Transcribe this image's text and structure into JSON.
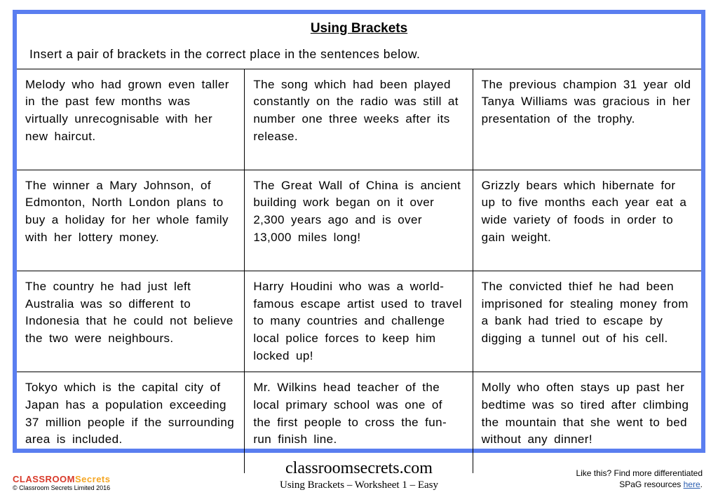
{
  "worksheet": {
    "title": "Using Brackets",
    "instructions": "Insert a pair of brackets in the correct place in the sentences below.",
    "cells": [
      "Melody who had grown even taller in the past few months was virtually unrecognisable with her new haircut.",
      "The song which had been played constantly on the radio was still at number one three weeks after its release.",
      "The previous champion 31 year old Tanya Williams was gracious in her presentation of the trophy.",
      "The winner a Mary Johnson, of Edmonton, North London plans to buy a holiday for her whole family with her lottery money.",
      "The Great Wall of China is ancient building work began on it over 2,300 years ago and is over 13,000 miles long!",
      "Grizzly bears which hibernate for up to five months each year eat a wide variety of foods in order to gain weight.",
      "The country he had just left Australia was so different to Indonesia that he could not believe the two were neighbours.",
      "Harry Houdini who was a world-famous escape artist used to travel to many countries and challenge local police forces to keep him locked up!",
      "The convicted thief he had been imprisoned for stealing money from a bank had tried to escape by digging a tunnel out of his cell.",
      "Tokyo which is the capital city of Japan has a population exceeding 37 million people if the surrounding area is included.",
      "Mr. Wilkins head teacher of the local primary school was one of the first people to cross the fun-run finish line.",
      "Molly who often stays up past her bedtime was so tired after climbing the mountain that she went to bed without any dinner!"
    ]
  },
  "footer": {
    "site": "classroomsecrets.com",
    "subtitle": "Using Brackets – Worksheet 1 – Easy",
    "logo_word1": "CLASSROOM",
    "logo_word2": "Secrets",
    "copyright": "© Classroom Secrets Limited 2016",
    "right_line1": "Like this? Find more differentiated",
    "right_line2_prefix": "SPaG resources ",
    "right_link": "here",
    "right_line2_suffix": "."
  },
  "style": {
    "border_color": "#5a7ef0",
    "grid_border_color": "#000000",
    "background": "#ffffff",
    "body_font": "Comic Sans MS",
    "title_fontsize": 19,
    "cell_fontsize": 17,
    "footer_site_font": "Georgia",
    "link_color": "#2a5db0",
    "logo_color_1": "#d83a2a",
    "logo_color_2": "#f5a623"
  }
}
